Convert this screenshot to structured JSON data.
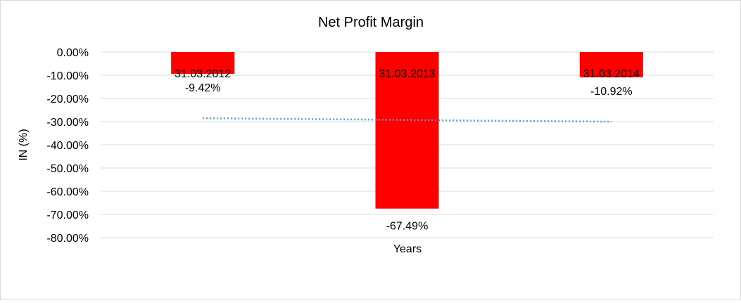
{
  "chart_data": {
    "type": "bar",
    "title": "Net Profit Margin",
    "xlabel": "Years",
    "ylabel": "IN (%)",
    "categories": [
      "31.03.2012",
      "31.03.2013",
      "31.03.2014"
    ],
    "values": [
      -9.42,
      -67.49,
      -10.92
    ],
    "value_labels": [
      "-9.42%",
      "-67.49%",
      "-10.92%"
    ],
    "ylim": [
      -80,
      0
    ],
    "yticks": [
      0,
      -10,
      -20,
      -30,
      -40,
      -50,
      -60,
      -70,
      -80
    ],
    "ytick_labels": [
      "0.00%",
      "-10.00%",
      "-20.00%",
      "-30.00%",
      "-40.00%",
      "-50.00%",
      "-60.00%",
      "-70.00%",
      "-80.00%"
    ],
    "grid": true,
    "legend": "none",
    "trendline": {
      "type": "linear",
      "style": "dotted"
    },
    "colors": {
      "bar": "#ff0000",
      "trendline": "#5b9bd5",
      "grid": "#d9d9d9"
    }
  }
}
